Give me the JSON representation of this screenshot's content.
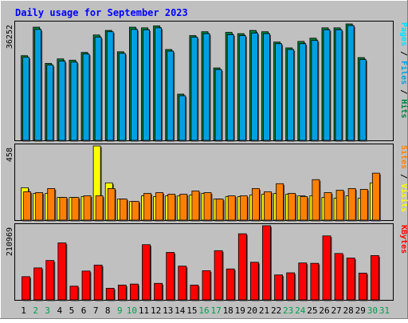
{
  "colors": {
    "background": "#c0c0c0",
    "title": "#0000ff",
    "hits": "#008040",
    "files": "#00a0e0",
    "pages": "#00e0ff",
    "visits": "#ffff00",
    "sites": "#ff8000",
    "kbytes": "#ff0000",
    "weekend_day": "#00a050",
    "weekday": "#000000"
  },
  "chart_data": {
    "title": "Daily usage for September 2023",
    "type": "bar",
    "days": [
      "1",
      "2",
      "3",
      "4",
      "5",
      "6",
      "7",
      "8",
      "9",
      "10",
      "11",
      "12",
      "13",
      "14",
      "15",
      "16",
      "17",
      "18",
      "19",
      "20",
      "21",
      "22",
      "23",
      "24",
      "25",
      "26",
      "27",
      "28",
      "29",
      "30",
      "31"
    ],
    "weekend_days": [
      "2",
      "3",
      "9",
      "10",
      "16",
      "17",
      "23",
      "24",
      "30",
      "31"
    ],
    "panels": [
      {
        "name": "hits-files-pages",
        "ymax_label": "36252",
        "ymax": 36252,
        "axis_label": [
          {
            "text": "Pages",
            "color_key": "pages"
          },
          {
            "text": " / ",
            "color_key": "weekday"
          },
          {
            "text": "Files",
            "color_key": "files"
          },
          {
            "text": " / ",
            "color_key": "weekday"
          },
          {
            "text": "Hits",
            "color_key": "hits"
          }
        ],
        "series": [
          {
            "name": "Hits",
            "color_key": "hits",
            "values": [
              26200,
              35000,
              23800,
              25200,
              24800,
              27200,
              32600,
              34000,
              27400,
              35000,
              34800,
              35400,
              28100,
              14300,
              32400,
              33600,
              22400,
              33400,
              33000,
              34000,
              33600,
              30400,
              28600,
              30600,
              31600,
              34800,
              34800,
              36000,
              25600,
              0,
              0
            ]
          },
          {
            "name": "Files",
            "color_key": "files",
            "values": [
              25700,
              34300,
              23300,
              24500,
              24200,
              26700,
              31900,
              33600,
              26900,
              34300,
              34200,
              34800,
              27600,
              13800,
              31900,
              33000,
              21900,
              32700,
              32400,
              33200,
              33000,
              29900,
              28100,
              29900,
              30900,
              34200,
              34200,
              35500,
              25000,
              0,
              0
            ]
          }
        ]
      },
      {
        "name": "visits-sites",
        "ymax_label": "458",
        "ymax": 458,
        "axis_label": [
          {
            "text": "Sites",
            "color_key": "sites"
          },
          {
            "text": " / ",
            "color_key": "weekday"
          },
          {
            "text": "Visits",
            "color_key": "visits"
          }
        ],
        "series": [
          {
            "name": "Visits",
            "color_key": "visits",
            "values": [
              200,
              165,
              165,
              140,
              140,
              145,
              458,
              230,
              130,
              115,
              150,
              145,
              150,
              150,
              155,
              165,
              130,
              145,
              145,
              155,
              160,
              165,
              160,
              150,
              150,
              140,
              135,
              150,
              135,
              230,
              0
            ]
          },
          {
            "name": "Sites",
            "color_key": "sites",
            "values": [
              175,
              170,
              195,
              140,
              140,
              150,
              150,
              195,
              130,
              115,
              165,
              170,
              160,
              160,
              180,
              170,
              130,
              150,
              150,
              195,
              175,
              225,
              165,
              145,
              250,
              170,
              185,
              195,
              190,
              290,
              0
            ]
          }
        ]
      },
      {
        "name": "kbytes",
        "ymax_label": "210969",
        "ymax": 210969,
        "axis_label": [
          {
            "text": "KBytes",
            "color_key": "kbytes"
          }
        ],
        "series": [
          {
            "name": "KBytes",
            "color_key": "kbytes",
            "values": [
              66000,
              91000,
              112000,
              162000,
              39000,
              82000,
              99000,
              33000,
              42000,
              45000,
              157000,
              47000,
              135000,
              96000,
              42000,
              83000,
              140000,
              88000,
              188000,
              107000,
              211000,
              71000,
              77000,
              105000,
              104000,
              182000,
              132000,
              119000,
              76000,
              126000,
              0
            ]
          }
        ]
      }
    ]
  }
}
